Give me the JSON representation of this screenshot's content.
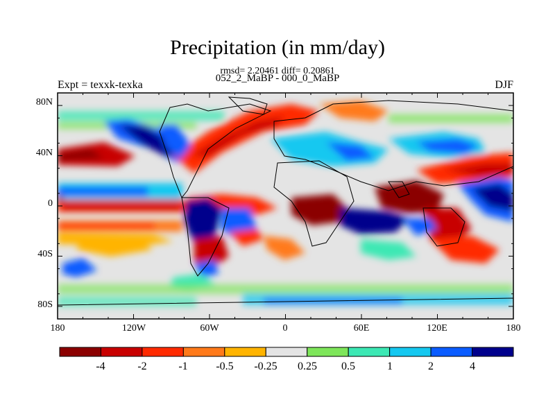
{
  "header": {
    "title": "Precipitation (in mm/day)",
    "stats": "rmsd= 2.20461 diff= 0.20861",
    "subtitle": "052_2_MaBP - 000_0_MaBP",
    "left_label": "Expt = texxk-texka",
    "right_label": "DJF"
  },
  "axes": {
    "lat_labels": [
      "80N",
      "40N",
      "0",
      "40S",
      "80S"
    ],
    "lon_labels": [
      "180",
      "120W",
      "60W",
      "0",
      "60E",
      "120E",
      "180"
    ]
  },
  "colorbar": {
    "colors": [
      "#8b0000",
      "#c80000",
      "#ff2a00",
      "#ff7a1a",
      "#ffb400",
      "#e4e4e4",
      "#7ee65a",
      "#3ce8b4",
      "#15c8f0",
      "#0a5cff",
      "#00008c"
    ],
    "labels": [
      "-4",
      "-2",
      "-1",
      "-0.5",
      "-0.25",
      "0.25",
      "0.5",
      "1",
      "2",
      "4"
    ]
  },
  "colors": {
    "ocean_grey": "#e4e4e4",
    "coast_line": "#000000"
  }
}
